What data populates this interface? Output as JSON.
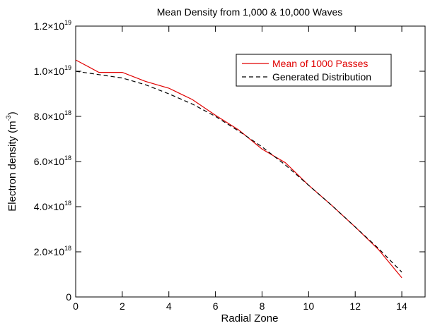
{
  "chart_data": {
    "type": "line",
    "title": "Mean Density from 1,000 & 10,000 Waves",
    "xlabel": "Radial Zone",
    "ylabel": {
      "prefix": "Electron density (m",
      "exponent": "-3",
      "suffix": ")"
    },
    "xlim": [
      0,
      15
    ],
    "ylim": [
      0,
      1.2e+19
    ],
    "x_ticks": [
      {
        "value": 0,
        "label": "0"
      },
      {
        "value": 2,
        "label": "2"
      },
      {
        "value": 4,
        "label": "4"
      },
      {
        "value": 6,
        "label": "6"
      },
      {
        "value": 8,
        "label": "8"
      },
      {
        "value": 10,
        "label": "10"
      },
      {
        "value": 12,
        "label": "12"
      },
      {
        "value": 14,
        "label": "14"
      }
    ],
    "y_ticks": [
      {
        "value": 0,
        "mantissa": "0",
        "exponent": ""
      },
      {
        "value": 2e+18,
        "mantissa": "2.0×10",
        "exponent": "18"
      },
      {
        "value": 4e+18,
        "mantissa": "4.0×10",
        "exponent": "18"
      },
      {
        "value": 6e+18,
        "mantissa": "6.0×10",
        "exponent": "18"
      },
      {
        "value": 8e+18,
        "mantissa": "8.0×10",
        "exponent": "18"
      },
      {
        "value": 1e+19,
        "mantissa": "1.0×10",
        "exponent": "19"
      },
      {
        "value": 1.2e+19,
        "mantissa": "1.2×10",
        "exponent": "19"
      }
    ],
    "legend_position": "top-right",
    "series": [
      {
        "name": "Mean of 1000 Passes",
        "color": "#e00000",
        "style": "solid",
        "x": [
          0,
          1,
          2,
          3,
          4,
          5,
          6,
          7,
          8,
          9,
          10,
          11,
          12,
          13,
          14
        ],
        "y": [
          1.05e+19,
          9.95e+18,
          9.95e+18,
          9.55e+18,
          9.25e+18,
          8.75e+18,
          8.05e+18,
          7.4e+18,
          6.55e+18,
          5.95e+18,
          4.95e+18,
          4.05e+18,
          3.1e+18,
          2.1e+18,
          8.5e+17
        ]
      },
      {
        "name": "Generated Distribution",
        "color": "#000000",
        "style": "dashed",
        "x": [
          0,
          1,
          2,
          3,
          4,
          5,
          6,
          7,
          8,
          9,
          10,
          11,
          12,
          13,
          14
        ],
        "y": [
          1e+19,
          9.85e+18,
          9.7e+18,
          9.4e+18,
          9e+18,
          8.55e+18,
          8e+18,
          7.35e+18,
          6.65e+18,
          5.85e+18,
          4.95e+18,
          4.05e+18,
          3.1e+18,
          2.15e+18,
          1.1e+18
        ]
      }
    ]
  }
}
